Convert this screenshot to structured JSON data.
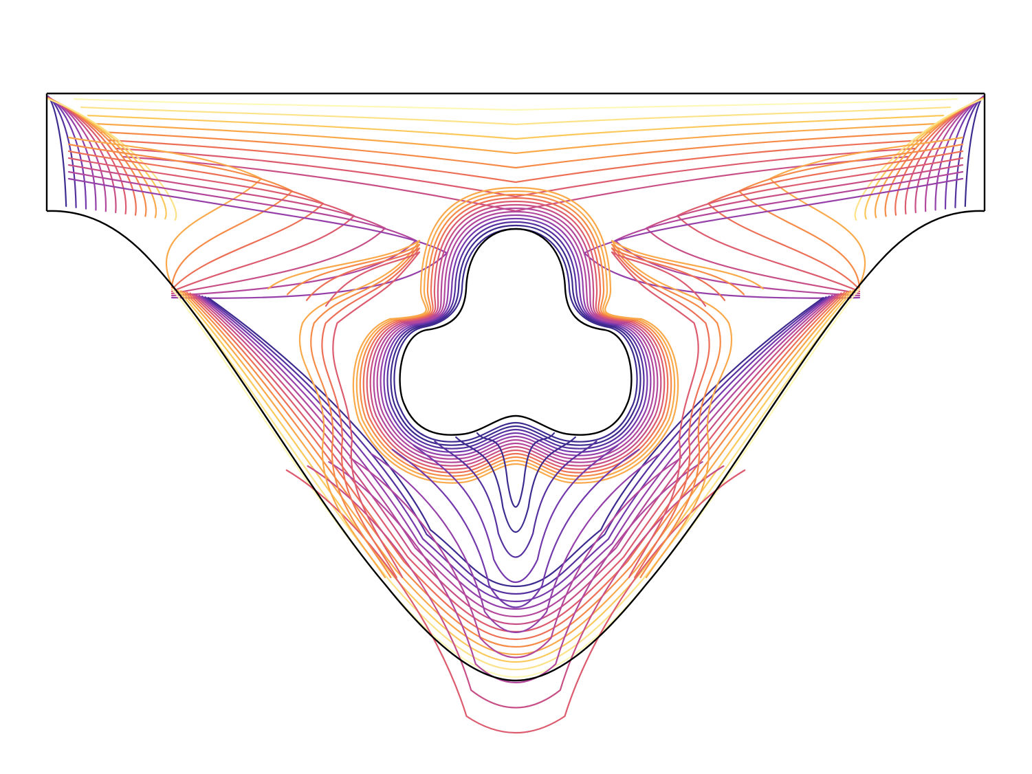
{
  "figure": {
    "type": "contour-diagram",
    "colormap": "plasma",
    "palette": [
      "#fdf8b8",
      "#fce38a",
      "#fbc95b",
      "#f9a94a",
      "#f58b47",
      "#ec6f56",
      "#dc5b6e",
      "#c84f86",
      "#b2479c",
      "#9540a9",
      "#7339ac",
      "#55309f",
      "#3d2a8f"
    ],
    "boundary_color": "#000000",
    "background": "#ffffff"
  }
}
